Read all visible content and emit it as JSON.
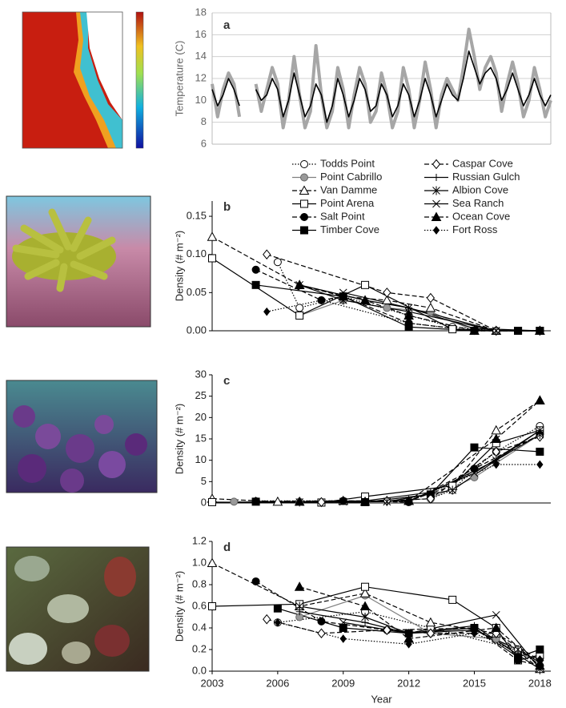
{
  "chart_data": [
    {
      "type": "line",
      "panel_label": "a",
      "y_label": "Temperature (C)",
      "xlim": [
        2003,
        2018.5
      ],
      "ylim": [
        6,
        18
      ],
      "yticks": [
        6,
        8,
        10,
        12,
        14,
        16,
        18
      ],
      "grid": true,
      "x": [
        2003,
        2003.25,
        2003.5,
        2003.75,
        2004,
        2004.25,
        2004.5,
        2004.75,
        2005,
        2005.25,
        2005.5,
        2005.75,
        2006,
        2006.25,
        2006.5,
        2006.75,
        2007,
        2007.25,
        2007.5,
        2007.75,
        2008,
        2008.25,
        2008.5,
        2008.75,
        2009,
        2009.25,
        2009.5,
        2009.75,
        2010,
        2010.25,
        2010.5,
        2010.75,
        2011,
        2011.25,
        2011.5,
        2011.75,
        2012,
        2012.25,
        2012.5,
        2012.75,
        2013,
        2013.25,
        2013.5,
        2013.75,
        2014,
        2014.25,
        2014.5,
        2014.75,
        2015,
        2015.25,
        2015.5,
        2015.75,
        2016,
        2016.25,
        2016.5,
        2016.75,
        2017,
        2017.25,
        2017.5,
        2017.75,
        2018,
        2018.25,
        2018.5
      ],
      "series": [
        {
          "color": "#a6a6a6",
          "width": 4,
          "values": [
            11.5,
            8.5,
            11,
            12.5,
            11.5,
            8.5,
            null,
            null,
            11.5,
            9,
            11,
            13,
            11.5,
            7.5,
            10,
            14,
            10.5,
            7.5,
            9,
            15,
            10.5,
            7.5,
            9,
            13,
            11,
            7.5,
            10.5,
            13,
            11.5,
            8,
            9,
            12.5,
            10.5,
            7.5,
            9,
            13,
            11,
            7.5,
            10,
            13.5,
            11,
            7.5,
            10.5,
            12,
            11,
            10,
            13,
            16.5,
            14,
            11,
            13,
            14,
            12.5,
            9,
            11.5,
            13.5,
            11.5,
            8.5,
            10,
            13,
            11,
            8.5,
            10
          ]
        },
        {
          "color": "#000000",
          "width": 1.6,
          "values": [
            11,
            9.5,
            10.5,
            12,
            11,
            9.5,
            null,
            null,
            11,
            10,
            10.5,
            12,
            11,
            8.5,
            10,
            12.5,
            10.5,
            8.5,
            9.5,
            11.5,
            10.5,
            8,
            9.5,
            12,
            10.5,
            8.5,
            10,
            12,
            11,
            9,
            9.5,
            11.5,
            10.5,
            8.5,
            9.5,
            11.5,
            10.5,
            8.5,
            10,
            12,
            10.5,
            8.5,
            10,
            11.5,
            10.5,
            10,
            12,
            14.5,
            13,
            11.5,
            12.5,
            13,
            12,
            10,
            11,
            12.5,
            11,
            9.5,
            10.5,
            12,
            10.5,
            9.5,
            10.5
          ]
        }
      ]
    },
    {
      "type": "line",
      "panel_label": "b",
      "y_label": "Density (# m⁻²)",
      "xlim": [
        2003,
        2018.5
      ],
      "ylim": [
        0,
        0.17
      ],
      "yticks": [
        {
          "value": 0,
          "label": "0.00"
        },
        {
          "value": 0.05,
          "label": "0.05"
        },
        {
          "value": 0.1,
          "label": "0.10"
        },
        {
          "value": 0.15,
          "label": "0.15"
        }
      ],
      "legend": true,
      "series": [
        {
          "name": "Todds Point",
          "color": "#000000",
          "marker": "circle-open",
          "dash": "dotted",
          "x": [
            2006,
            2007,
            2009,
            2012,
            2014,
            2016,
            2017,
            2018
          ],
          "values": [
            0.09,
            0.03,
            0.045,
            0.02,
            0.005,
            0,
            0,
            0
          ]
        },
        {
          "name": "Point Cabrillo",
          "color": "#808080",
          "marker": "circle-gray",
          "dash": "solid",
          "x": [
            2007,
            2009,
            2011,
            2013,
            2015,
            2017,
            2018
          ],
          "values": [
            0.02,
            0.04,
            0.03,
            0.025,
            0,
            0,
            0
          ]
        },
        {
          "name": "Van Damme",
          "color": "#000000",
          "marker": "triangle-open",
          "dash": "dashed",
          "x": [
            2003,
            2007,
            2009,
            2011,
            2013,
            2016,
            2018
          ],
          "values": [
            0.123,
            0.06,
            0.045,
            0.04,
            0.03,
            0,
            0
          ]
        },
        {
          "name": "Point Arena",
          "color": "#000000",
          "marker": "square-open",
          "dash": "solid",
          "x": [
            2003,
            2007,
            2010,
            2014,
            2017,
            2018
          ],
          "values": [
            0.095,
            0.02,
            0.06,
            0.002,
            0,
            0
          ]
        },
        {
          "name": "Salt Point",
          "color": "#000000",
          "marker": "circle",
          "dash": "dashed",
          "x": [
            2005,
            2008,
            2009,
            2012,
            2015,
            2017,
            2018
          ],
          "values": [
            0.08,
            0.04,
            0.045,
            0.01,
            0,
            0,
            0
          ]
        },
        {
          "name": "Timber Cove",
          "color": "#000000",
          "marker": "square",
          "dash": "solid",
          "x": [
            2005,
            2009,
            2012,
            2015,
            2017,
            2018
          ],
          "values": [
            0.06,
            0.045,
            0.005,
            0,
            0,
            0
          ]
        },
        {
          "name": "Caspar Cove",
          "color": "#000000",
          "marker": "diamond-open",
          "dash": "dashed",
          "x": [
            2005.5,
            2011,
            2013,
            2016,
            2018
          ],
          "values": [
            0.1,
            0.05,
            0.043,
            0,
            0
          ]
        },
        {
          "name": "Russian Gulch",
          "color": "#000000",
          "marker": "plus",
          "dash": "solid",
          "x": [
            2007,
            2010,
            2012,
            2015,
            2018
          ],
          "values": [
            0.06,
            0.04,
            0.03,
            0.003,
            0
          ]
        },
        {
          "name": "Albion Cove",
          "color": "#000000",
          "marker": "asterisk",
          "dash": "solid",
          "x": [
            2007,
            2009,
            2012,
            2016,
            2018
          ],
          "values": [
            0.06,
            0.04,
            0.025,
            0,
            0
          ]
        },
        {
          "name": "Sea Ranch",
          "color": "#000000",
          "marker": "cross",
          "dash": "solid",
          "x": [
            2009,
            2012,
            2016,
            2018
          ],
          "values": [
            0.05,
            0.03,
            0,
            0
          ]
        },
        {
          "name": "Ocean Cove",
          "color": "#000000",
          "marker": "triangle",
          "dash": "dashed",
          "x": [
            2007,
            2010,
            2012,
            2015,
            2018
          ],
          "values": [
            0.06,
            0.04,
            0.02,
            0,
            0
          ]
        },
        {
          "name": "Fort Ross",
          "color": "#000000",
          "marker": "diamond",
          "dash": "dotted",
          "x": [
            2005.5,
            2008,
            2012,
            2015,
            2018
          ],
          "values": [
            0.025,
            0.04,
            0.01,
            0,
            0
          ]
        }
      ]
    },
    {
      "type": "line",
      "panel_label": "c",
      "y_label": "Density (# m⁻²)",
      "xlim": [
        2003,
        2018.5
      ],
      "ylim": [
        0,
        30
      ],
      "yticks": [
        0,
        5,
        10,
        15,
        20,
        25,
        30
      ],
      "series": [
        {
          "color": "#000000",
          "marker": "circle-open",
          "dash": "dotted",
          "x": [
            2013,
            2014,
            2015,
            2016,
            2018
          ],
          "values": [
            1,
            3,
            8,
            12,
            18
          ]
        },
        {
          "color": "#808080",
          "marker": "circle-gray",
          "dash": "solid",
          "x": [
            2004,
            2007,
            2010,
            2013,
            2015,
            2018
          ],
          "values": [
            0.3,
            0.3,
            0.3,
            1,
            6,
            16
          ]
        },
        {
          "color": "#000000",
          "marker": "triangle-open",
          "dash": "dashed",
          "x": [
            2003,
            2006,
            2009,
            2012,
            2014,
            2016,
            2018
          ],
          "values": [
            1,
            0.3,
            0.5,
            0.5,
            4,
            17,
            24
          ]
        },
        {
          "color": "#000000",
          "marker": "square-open",
          "dash": "solid",
          "x": [
            2003,
            2008,
            2010,
            2014,
            2016,
            2018
          ],
          "values": [
            0.2,
            0.1,
            1.5,
            4,
            14,
            17
          ]
        },
        {
          "color": "#000000",
          "marker": "circle",
          "dash": "dashed",
          "x": [
            2005,
            2009,
            2012,
            2015,
            2018
          ],
          "values": [
            0.4,
            0.5,
            0.2,
            8,
            16
          ]
        },
        {
          "color": "#000000",
          "marker": "square",
          "dash": "solid",
          "x": [
            2005,
            2010,
            2013,
            2015,
            2018
          ],
          "values": [
            0.3,
            0.2,
            2,
            13,
            12
          ]
        },
        {
          "color": "#000000",
          "marker": "diamond-open",
          "dash": "dashed",
          "x": [
            2008,
            2011,
            2013,
            2016,
            2018
          ],
          "values": [
            0.2,
            0.5,
            1,
            12,
            15.5
          ]
        },
        {
          "color": "#000000",
          "marker": "plus",
          "dash": "solid",
          "x": [
            2007,
            2010,
            2013,
            2016,
            2018
          ],
          "values": [
            0.3,
            0.5,
            2.5,
            10,
            17
          ]
        },
        {
          "color": "#000000",
          "marker": "asterisk",
          "dash": "solid",
          "x": [
            2007,
            2011,
            2014,
            2016,
            2018
          ],
          "values": [
            0.2,
            0.3,
            3,
            10,
            16
          ]
        },
        {
          "color": "#000000",
          "marker": "cross",
          "dash": "solid",
          "x": [
            2009,
            2012,
            2015,
            2018
          ],
          "values": [
            0.3,
            0.5,
            7,
            17
          ]
        },
        {
          "color": "#000000",
          "marker": "triangle",
          "dash": "dashed",
          "x": [
            2007,
            2010,
            2012,
            2016,
            2018
          ],
          "values": [
            0.3,
            0.3,
            0.5,
            15,
            24
          ]
        },
        {
          "color": "#000000",
          "marker": "diamond",
          "dash": "dotted",
          "x": [
            2005,
            2009,
            2012,
            2016,
            2018
          ],
          "values": [
            0.5,
            0.5,
            0.3,
            9,
            9
          ]
        }
      ]
    },
    {
      "type": "line",
      "panel_label": "d",
      "y_label": "Density (# m⁻²)",
      "x_label": "Year",
      "xlim": [
        2003,
        2018.5
      ],
      "ylim": [
        0,
        1.2
      ],
      "yticks": [
        {
          "value": 0,
          "label": "0.0"
        },
        0.2,
        0.4,
        0.6,
        0.8,
        {
          "value": 1,
          "label": "1.0"
        },
        1.2
      ],
      "xticks": [
        2003,
        2006,
        2009,
        2012,
        2015,
        2018
      ],
      "series": [
        {
          "color": "#000000",
          "marker": "circle-open",
          "dash": "dotted",
          "x": [
            2006,
            2010,
            2013,
            2017,
            2018
          ],
          "values": [
            0.45,
            0.55,
            0.4,
            0.2,
            0.05
          ]
        },
        {
          "color": "#808080",
          "marker": "circle-gray",
          "dash": "solid",
          "x": [
            2007,
            2010,
            2013,
            2016,
            2017,
            2018
          ],
          "values": [
            0.5,
            0.7,
            0.35,
            0.3,
            0.15,
            0.12
          ]
        },
        {
          "color": "#000000",
          "marker": "triangle-open",
          "dash": "dashed",
          "x": [
            2003,
            2007,
            2010,
            2013,
            2016,
            2018
          ],
          "values": [
            1,
            0.6,
            0.72,
            0.45,
            0.35,
            0.02
          ]
        },
        {
          "color": "#000000",
          "marker": "square-open",
          "dash": "solid",
          "x": [
            2003,
            2007,
            2010,
            2014,
            2016,
            2017,
            2018
          ],
          "values": [
            0.6,
            0.62,
            0.78,
            0.66,
            0.4,
            0.1,
            0.15
          ]
        },
        {
          "color": "#000000",
          "marker": "circle",
          "dash": "dashed",
          "x": [
            2005,
            2008,
            2011,
            2015,
            2017,
            2018
          ],
          "values": [
            0.83,
            0.46,
            0.38,
            0.4,
            0.1,
            0.05
          ]
        },
        {
          "color": "#000000",
          "marker": "square",
          "dash": "solid",
          "x": [
            2006,
            2009,
            2012,
            2015,
            2017,
            2018
          ],
          "values": [
            0.58,
            0.4,
            0.35,
            0.4,
            0.13,
            0.2
          ]
        },
        {
          "color": "#000000",
          "marker": "diamond-open",
          "dash": "dashed",
          "x": [
            2005.5,
            2008,
            2011,
            2013,
            2016,
            2018
          ],
          "values": [
            0.48,
            0.35,
            0.38,
            0.35,
            0.35,
            0.1
          ]
        },
        {
          "color": "#000000",
          "marker": "plus",
          "dash": "solid",
          "x": [
            2007,
            2010,
            2012,
            2015,
            2017,
            2018
          ],
          "values": [
            0.55,
            0.45,
            0.35,
            0.42,
            0.15,
            0.02
          ]
        },
        {
          "color": "#000000",
          "marker": "asterisk",
          "dash": "solid",
          "x": [
            2007,
            2010,
            2012,
            2015,
            2017,
            2018
          ],
          "values": [
            0.6,
            0.5,
            0.35,
            0.38,
            0.2,
            0.08
          ]
        },
        {
          "color": "#000000",
          "marker": "cross",
          "dash": "solid",
          "x": [
            2009,
            2012,
            2016,
            2018
          ],
          "values": [
            0.45,
            0.35,
            0.52,
            0.02
          ]
        },
        {
          "color": "#000000",
          "marker": "triangle",
          "dash": "dashed",
          "x": [
            2007,
            2010,
            2012,
            2016,
            2018
          ],
          "values": [
            0.78,
            0.6,
            0.3,
            0.4,
            0.05
          ]
        },
        {
          "color": "#000000",
          "marker": "diamond",
          "dash": "dotted",
          "x": [
            2006,
            2009,
            2012,
            2015,
            2018
          ],
          "values": [
            0.45,
            0.3,
            0.25,
            0.35,
            0.1
          ]
        }
      ]
    }
  ]
}
